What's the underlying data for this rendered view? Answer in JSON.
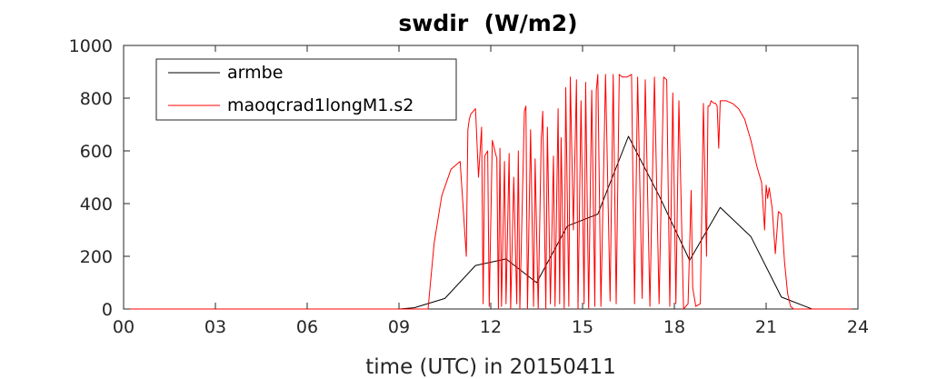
{
  "chart_data": {
    "type": "line",
    "title": "swdir  (W/m2)",
    "xlabel": "time (UTC) in 20150411",
    "ylabel": "",
    "xlim": [
      0,
      24
    ],
    "ylim": [
      0,
      1000
    ],
    "xticks": [
      0,
      3,
      6,
      9,
      12,
      15,
      18,
      21,
      24
    ],
    "xtick_labels": [
      "00",
      "03",
      "06",
      "09",
      "12",
      "15",
      "18",
      "21",
      "24"
    ],
    "yticks": [
      0,
      200,
      400,
      600,
      800,
      1000
    ],
    "ytick_labels": [
      "0",
      "200",
      "400",
      "600",
      "800",
      "1000"
    ],
    "grid": false,
    "legend_position": "top-left",
    "series": [
      {
        "name": "armbe",
        "color": "#000000",
        "x": [
          0,
          9,
          9.5,
          10.5,
          11.5,
          12.5,
          13.5,
          14.5,
          15.5,
          16.5,
          17.5,
          18.5,
          19.5,
          20.5,
          21.5,
          22.5,
          23.5,
          24
        ],
        "y": [
          0,
          0,
          5,
          40,
          165,
          190,
          100,
          315,
          360,
          655,
          430,
          185,
          385,
          275,
          45,
          0,
          0,
          0
        ]
      },
      {
        "name": "maoqcrad1longM1.s2",
        "color": "#ff0000",
        "x": [
          0,
          9.95,
          10.15,
          10.4,
          10.7,
          11.0,
          11.2,
          11.25,
          11.3,
          11.35,
          11.5,
          11.6,
          11.7,
          11.75,
          11.8,
          11.9,
          11.95,
          12.05,
          12.2,
          12.25,
          12.3,
          12.35,
          12.45,
          12.5,
          12.6,
          12.65,
          12.75,
          12.85,
          12.9,
          12.95,
          13.1,
          13.15,
          13.2,
          13.3,
          13.4,
          13.45,
          13.55,
          13.65,
          13.7,
          13.8,
          13.85,
          13.95,
          14.05,
          14.1,
          14.2,
          14.25,
          14.3,
          14.4,
          14.45,
          14.55,
          14.6,
          14.7,
          14.8,
          14.85,
          14.95,
          15.05,
          15.1,
          15.2,
          15.3,
          15.4,
          15.45,
          15.5,
          15.6,
          15.75,
          15.9,
          16.0,
          16.1,
          16.2,
          16.3,
          16.45,
          16.6,
          16.7,
          16.8,
          16.95,
          17.05,
          17.2,
          17.35,
          17.5,
          17.65,
          17.75,
          17.85,
          17.95,
          18.05,
          18.15,
          18.3,
          18.45,
          18.55,
          18.6,
          18.7,
          18.85,
          18.95,
          19.05,
          19.1,
          19.15,
          19.2,
          19.3,
          19.35,
          19.4,
          19.45,
          19.5,
          19.7,
          19.9,
          20.1,
          20.3,
          20.5,
          20.7,
          20.85,
          20.95,
          21.0,
          21.05,
          21.1,
          21.2,
          21.3,
          21.4,
          21.5,
          21.6,
          21.7,
          21.8,
          21.9,
          24
        ],
        "y": [
          0,
          0,
          250,
          430,
          530,
          560,
          200,
          680,
          720,
          740,
          760,
          500,
          690,
          20,
          580,
          600,
          10,
          640,
          570,
          0,
          610,
          10,
          560,
          20,
          590,
          0,
          500,
          20,
          600,
          0,
          750,
          770,
          0,
          680,
          10,
          570,
          0,
          640,
          750,
          0,
          690,
          20,
          580,
          10,
          760,
          20,
          650,
          0,
          840,
          10,
          880,
          300,
          870,
          0,
          790,
          20,
          860,
          0,
          830,
          10,
          830,
          890,
          10,
          890,
          30,
          890,
          20,
          890,
          880,
          880,
          890,
          20,
          880,
          40,
          870,
          10,
          880,
          20,
          880,
          870,
          10,
          820,
          20,
          790,
          0,
          20,
          450,
          80,
          10,
          20,
          780,
          200,
          770,
          770,
          790,
          780,
          780,
          770,
          610,
          790,
          790,
          780,
          760,
          720,
          640,
          540,
          480,
          300,
          470,
          420,
          460,
          380,
          210,
          370,
          360,
          180,
          60,
          10,
          0,
          0
        ]
      }
    ]
  }
}
